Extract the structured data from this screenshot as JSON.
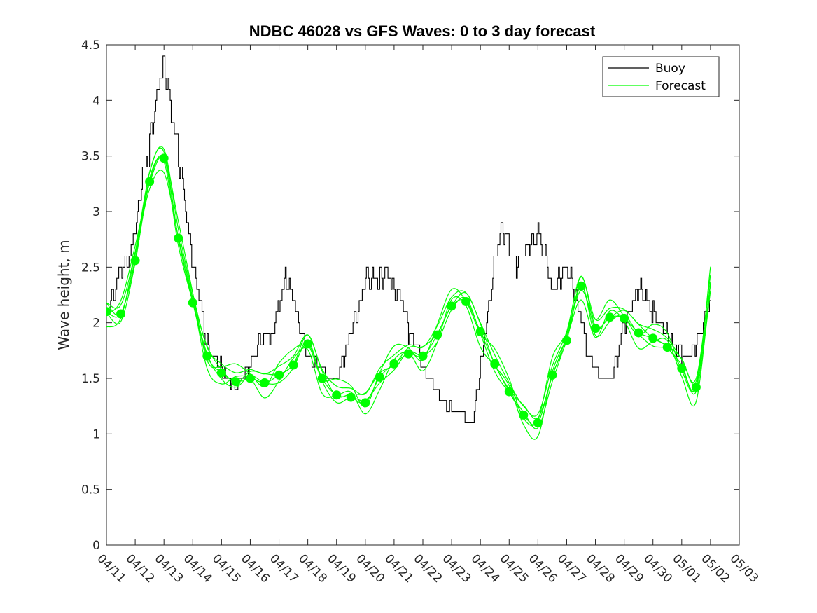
{
  "chart_data": {
    "type": "line",
    "title": "NDBC 46028 vs GFS Waves: 0 to 3 day forecast",
    "xlabel": "",
    "ylabel": "Wave height, m",
    "xlim": [
      "04/11",
      "05/03"
    ],
    "ylim": [
      0,
      4.5
    ],
    "x_tick_labels": [
      "04/11",
      "04/12",
      "04/13",
      "04/14",
      "04/15",
      "04/16",
      "04/17",
      "04/18",
      "04/19",
      "04/20",
      "04/21",
      "04/22",
      "04/23",
      "04/24",
      "04/25",
      "04/26",
      "04/27",
      "04/28",
      "04/29",
      "04/30",
      "05/01",
      "05/02",
      "05/03"
    ],
    "y_tick_labels": [
      "0",
      "0.5",
      "1",
      "1.5",
      "2",
      "2.5",
      "3",
      "3.5",
      "4",
      "4.5"
    ],
    "y_ticks": [
      0,
      0.5,
      1,
      1.5,
      2,
      2.5,
      3,
      3.5,
      4,
      4.5
    ],
    "legend": {
      "position": "top-right",
      "entries": [
        {
          "label": "Buoy",
          "color": "#000000"
        },
        {
          "label": "Forecast",
          "color": "#00ff00"
        }
      ]
    },
    "series": [
      {
        "name": "Buoy",
        "color": "#000000",
        "x_days": [
          0,
          0.25,
          0.5,
          0.75,
          1,
          1.25,
          1.5,
          1.75,
          2,
          2.25,
          2.5,
          2.75,
          3,
          3.25,
          3.5,
          3.75,
          4,
          4.25,
          4.5,
          4.75,
          5,
          5.25,
          5.5,
          5.75,
          6,
          6.25,
          6.5,
          6.75,
          7,
          7.25,
          7.5,
          7.75,
          8,
          8.25,
          8.5,
          8.75,
          9,
          9.25,
          9.5,
          9.75,
          10,
          10.25,
          10.5,
          10.75,
          11,
          11.25,
          11.5,
          11.75,
          12,
          12.25,
          12.5,
          12.75,
          13,
          13.25,
          13.5,
          13.75,
          14,
          14.25,
          14.5,
          14.75,
          15,
          15.25,
          15.5,
          15.75,
          16,
          16.25,
          16.5,
          16.75,
          17,
          17.25,
          17.5,
          17.75,
          18,
          18.25,
          18.5,
          18.75,
          19,
          19.25,
          19.5,
          19.75,
          20,
          20.25,
          20.5,
          20.75,
          21
        ],
        "values": [
          2.1,
          2.3,
          2.5,
          2.5,
          2.8,
          3.3,
          3.6,
          4.1,
          4.4,
          3.9,
          3.5,
          3.0,
          2.5,
          2.2,
          1.8,
          1.7,
          1.6,
          1.5,
          1.4,
          1.5,
          1.6,
          1.8,
          1.9,
          1.9,
          2.2,
          2.4,
          2.2,
          1.9,
          1.7,
          1.6,
          1.6,
          1.5,
          1.5,
          1.7,
          1.9,
          2.1,
          2.4,
          2.4,
          2.4,
          2.5,
          2.3,
          2.2,
          1.9,
          1.8,
          1.6,
          1.5,
          1.4,
          1.3,
          1.2,
          1.2,
          1.1,
          1.1,
          1.6,
          2.1,
          2.6,
          2.9,
          2.7,
          2.5,
          2.6,
          2.7,
          2.8,
          2.6,
          2.3,
          2.4,
          2.5,
          2.3,
          2.0,
          1.7,
          1.6,
          1.5,
          1.5,
          1.7,
          2.0,
          2.1,
          2.3,
          2.2,
          2.1,
          2.0,
          1.9,
          1.8,
          1.7,
          1.7,
          1.8,
          2.0,
          2.2
        ]
      },
      {
        "name": "Forecast",
        "color": "#00ff00",
        "x_days": [
          0,
          0.5,
          1,
          1.5,
          2,
          2.5,
          3,
          3.5,
          4,
          4.5,
          5,
          5.5,
          6,
          6.5,
          7,
          7.5,
          8,
          8.5,
          9,
          9.5,
          10,
          10.5,
          11,
          11.5,
          12,
          12.5,
          13,
          13.5,
          14,
          14.5,
          15,
          15.5,
          16,
          16.5,
          17,
          17.5,
          18,
          18.5,
          19,
          19.5,
          20,
          20.5,
          21
        ],
        "values": [
          2.1,
          2.08,
          2.56,
          3.27,
          3.48,
          2.76,
          2.18,
          1.7,
          1.55,
          1.47,
          1.5,
          1.46,
          1.53,
          1.62,
          1.81,
          1.5,
          1.35,
          1.33,
          1.28,
          1.51,
          1.63,
          1.72,
          1.7,
          1.89,
          2.15,
          2.19,
          1.92,
          1.63,
          1.38,
          1.17,
          1.1,
          1.53,
          1.84,
          2.33,
          1.95,
          2.05,
          2.04,
          1.91,
          1.86,
          1.78,
          1.59,
          1.42,
          2.35
        ]
      }
    ]
  }
}
